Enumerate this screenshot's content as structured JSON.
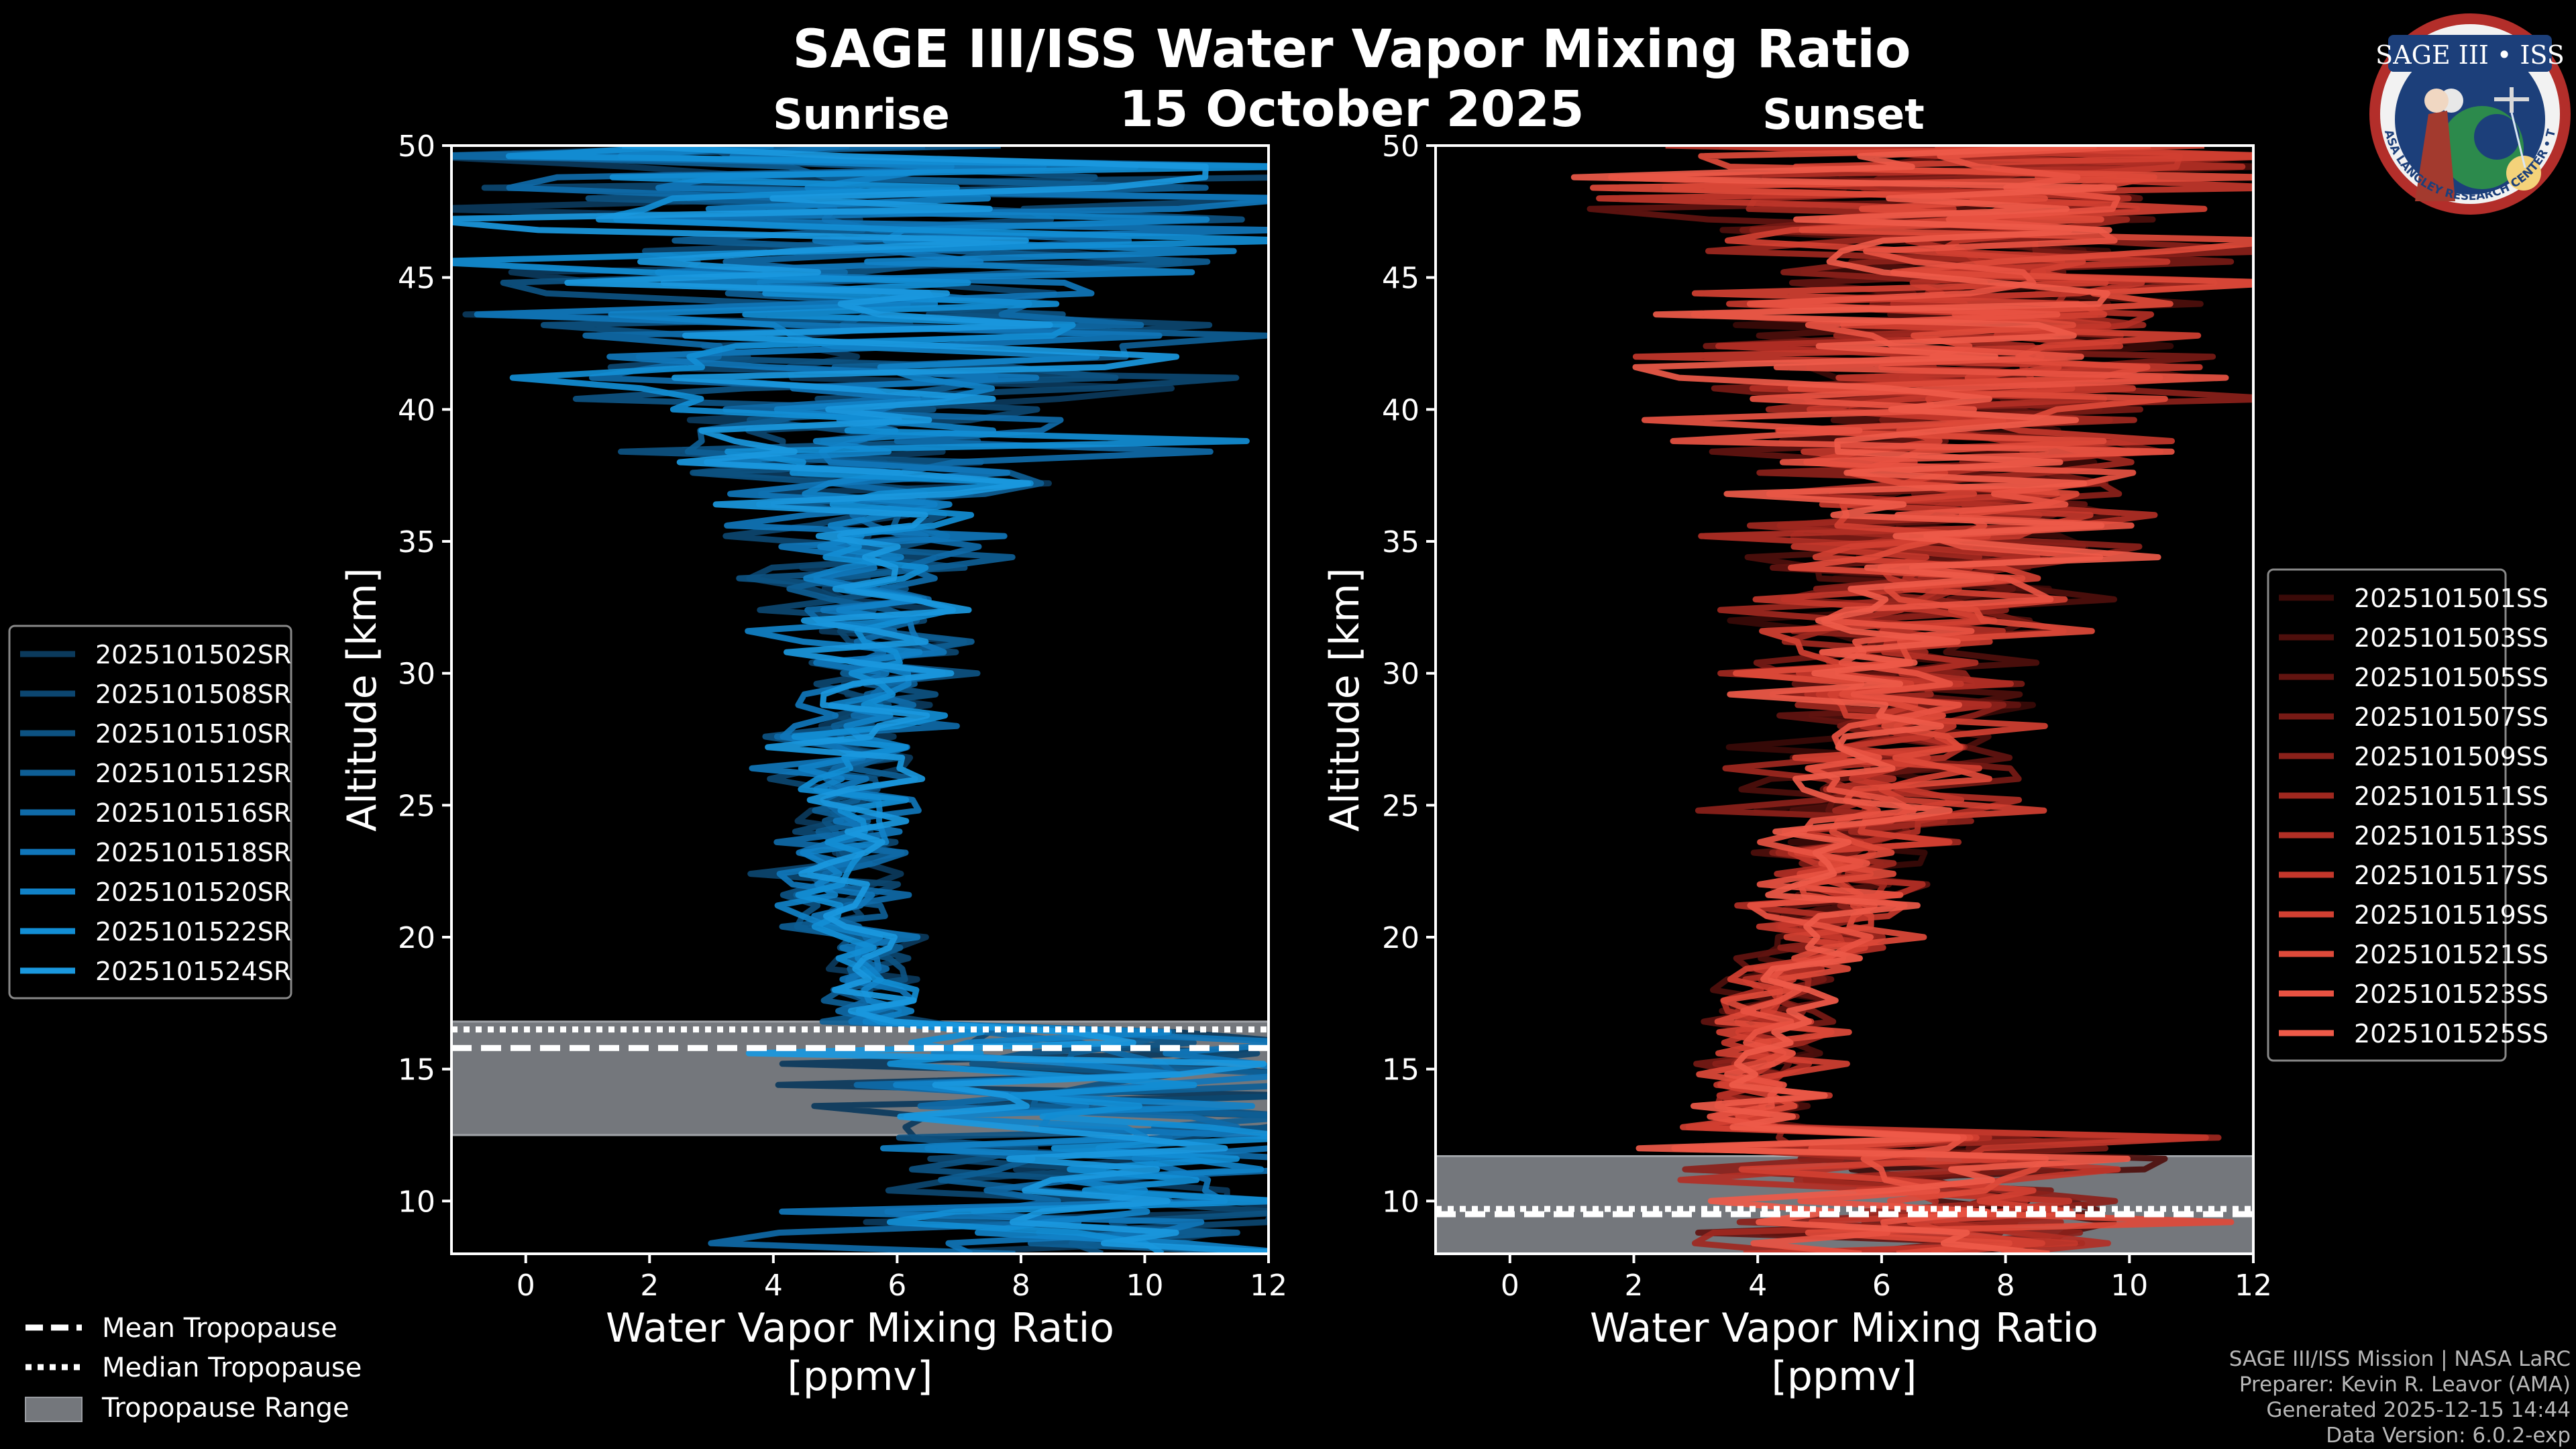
{
  "figure": {
    "title": "SAGE III/ISS Water Vapor Mixing Ratio",
    "date": "15 October 2025",
    "bg": "#000000"
  },
  "logo": {
    "top_text": "SAGE III • ISS",
    "ring_text": "BALL • NASA LANGLEY RESEARCH CENTER • TAS • ESA"
  },
  "chart_data": [
    {
      "type": "line",
      "panel": "sunrise",
      "title": "Sunrise",
      "xlabel": "Water Vapor Mixing Ratio [ppmv]",
      "ylabel": "Altitude [km]",
      "xlim": [
        -1.2,
        12
      ],
      "ylim": [
        8,
        50
      ],
      "xticks": [
        0,
        2,
        4,
        6,
        8,
        10,
        12
      ],
      "yticks": [
        10,
        15,
        20,
        25,
        30,
        35,
        40,
        45,
        50
      ],
      "tropopause": {
        "mean": 15.8,
        "median": 16.5,
        "range": [
          12.5,
          16.8
        ]
      },
      "legend_position": "left",
      "series": [
        {
          "name": "2025101502SR",
          "color": "#0b3a5c"
        },
        {
          "name": "2025101508SR",
          "color": "#0c4670"
        },
        {
          "name": "2025101510SR",
          "color": "#0d5282"
        },
        {
          "name": "2025101512SR",
          "color": "#0e5e95"
        },
        {
          "name": "2025101516SR",
          "color": "#0f6aa8"
        },
        {
          "name": "2025101518SR",
          "color": "#1076ba"
        },
        {
          "name": "2025101520SR",
          "color": "#1182c8"
        },
        {
          "name": "2025101522SR",
          "color": "#128ed5"
        },
        {
          "name": "2025101524SR",
          "color": "#1a98de"
        }
      ]
    },
    {
      "type": "line",
      "panel": "sunset",
      "title": "Sunset",
      "xlabel": "Water Vapor Mixing Ratio [ppmv]",
      "ylabel": "Altitude [km]",
      "xlim": [
        -1.2,
        12
      ],
      "ylim": [
        8,
        50
      ],
      "xticks": [
        0,
        2,
        4,
        6,
        8,
        10,
        12
      ],
      "yticks": [
        10,
        15,
        20,
        25,
        30,
        35,
        40,
        45,
        50
      ],
      "tropopause": {
        "mean": 9.5,
        "median": 9.7,
        "range": [
          8,
          11.7
        ]
      },
      "legend_position": "right",
      "series": [
        {
          "name": "2025101501SS",
          "color": "#3a0a08"
        },
        {
          "name": "2025101503SS",
          "color": "#4e0f0c"
        },
        {
          "name": "2025101505SS",
          "color": "#621410"
        },
        {
          "name": "2025101507SS",
          "color": "#771a15"
        },
        {
          "name": "2025101509SS",
          "color": "#8b211a"
        },
        {
          "name": "2025101511SS",
          "color": "#9f281f"
        },
        {
          "name": "2025101513SS",
          "color": "#b22f25"
        },
        {
          "name": "2025101517SS",
          "color": "#c3372b"
        },
        {
          "name": "2025101519SS",
          "color": "#d24032"
        },
        {
          "name": "2025101521SS",
          "color": "#de4a3a"
        },
        {
          "name": "2025101523SS",
          "color": "#e85242"
        },
        {
          "name": "2025101525SS",
          "color": "#ee5a49"
        }
      ]
    }
  ],
  "tropo_legend": {
    "mean": "Mean Tropopause",
    "median": "Median Tropopause",
    "range": "Tropopause Range"
  },
  "credits": {
    "line1": "SAGE III/ISS Mission | NASA LaRC",
    "line2": "Preparer: Kevin R. Leavor (AMA)",
    "line3": "Generated 2025-12-15 14:44",
    "line4": "Data Version: 6.0.2-exp"
  }
}
